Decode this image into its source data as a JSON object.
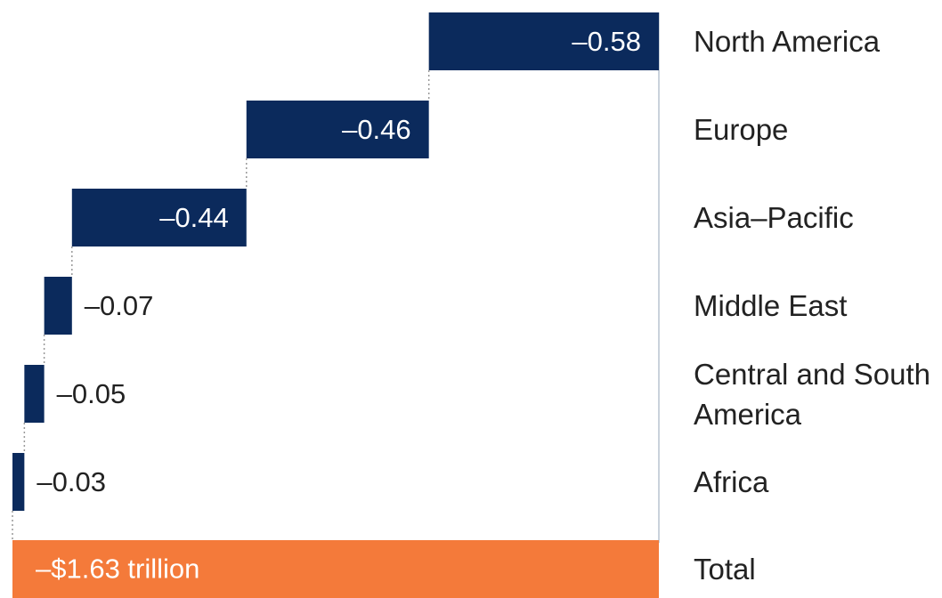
{
  "chart_data": {
    "type": "waterfall",
    "categories": [
      "North America",
      "Europe",
      "Asia–Pacific",
      "Middle East",
      "Central and South America",
      "Africa"
    ],
    "values": [
      -0.58,
      -0.46,
      -0.44,
      -0.07,
      -0.05,
      -0.03
    ],
    "value_labels": [
      "–0.58",
      "–0.46",
      "–0.44",
      "–0.07",
      "–0.05",
      "–0.03"
    ],
    "color": "#0b2a5c",
    "total": {
      "label": "Total",
      "value": -1.63,
      "value_label": "–$1.63 trillion",
      "color": "#f47a3a"
    }
  }
}
